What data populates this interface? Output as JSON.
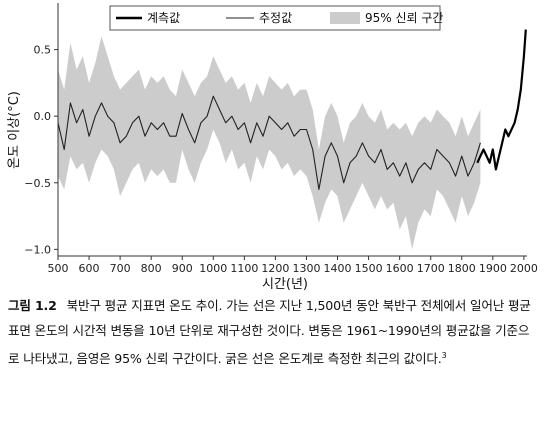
{
  "chart_data": {
    "type": "line",
    "xlabel": "시간(년)",
    "ylabel": "온도 이상(°C)",
    "xlim": [
      500,
      2010
    ],
    "ylim": [
      -1.05,
      0.85
    ],
    "x_ticks": [
      500,
      600,
      700,
      800,
      900,
      1000,
      1100,
      1200,
      1300,
      1400,
      1500,
      1600,
      1700,
      1800,
      1900,
      2000
    ],
    "x_tick_labels": [
      "500",
      "600",
      "700",
      "800",
      "900",
      "1000",
      "1100",
      "1200",
      "1300",
      "1400",
      "1500",
      "1600",
      "1700",
      "1800",
      "1900",
      "2000"
    ],
    "y_ticks": [
      0.5,
      0.0,
      -0.5,
      -1.0
    ],
    "y_tick_labels": [
      "0.5",
      "0.0",
      "−0.5",
      "−1.0"
    ],
    "legend_position": "top",
    "grid": false,
    "series": [
      {
        "name": "추정값",
        "style": "thin-line",
        "color": "#222222",
        "x": [
          500,
          520,
          540,
          560,
          580,
          600,
          620,
          640,
          660,
          680,
          700,
          720,
          740,
          760,
          780,
          800,
          820,
          840,
          860,
          880,
          900,
          920,
          940,
          960,
          980,
          1000,
          1020,
          1040,
          1060,
          1080,
          1100,
          1120,
          1140,
          1160,
          1180,
          1200,
          1220,
          1240,
          1260,
          1280,
          1300,
          1320,
          1340,
          1360,
          1380,
          1400,
          1420,
          1440,
          1460,
          1480,
          1500,
          1520,
          1540,
          1560,
          1580,
          1600,
          1620,
          1640,
          1660,
          1680,
          1700,
          1720,
          1740,
          1760,
          1780,
          1800,
          1820,
          1840,
          1860
        ],
        "values": [
          -0.05,
          -0.25,
          0.1,
          -0.05,
          0.05,
          -0.15,
          0.0,
          0.1,
          0.0,
          -0.05,
          -0.2,
          -0.15,
          -0.05,
          0.0,
          -0.15,
          -0.05,
          -0.1,
          -0.05,
          -0.15,
          -0.15,
          0.02,
          -0.1,
          -0.2,
          -0.05,
          0.0,
          0.15,
          0.05,
          -0.05,
          0.0,
          -0.1,
          -0.05,
          -0.2,
          -0.05,
          -0.15,
          0.0,
          -0.05,
          -0.1,
          -0.05,
          -0.15,
          -0.1,
          -0.1,
          -0.25,
          -0.55,
          -0.3,
          -0.2,
          -0.3,
          -0.5,
          -0.35,
          -0.3,
          -0.2,
          -0.3,
          -0.35,
          -0.25,
          -0.4,
          -0.35,
          -0.45,
          -0.35,
          -0.5,
          -0.4,
          -0.35,
          -0.4,
          -0.25,
          -0.3,
          -0.35,
          -0.45,
          -0.3,
          -0.45,
          -0.35,
          -0.2
        ]
      },
      {
        "name": "계측값",
        "style": "thick-line",
        "color": "#000000",
        "x": [
          1850,
          1860,
          1870,
          1880,
          1890,
          1900,
          1910,
          1920,
          1930,
          1940,
          1950,
          1960,
          1970,
          1980,
          1990,
          2000,
          2006
        ],
        "values": [
          -0.35,
          -0.3,
          -0.25,
          -0.3,
          -0.35,
          -0.25,
          -0.4,
          -0.3,
          -0.2,
          -0.1,
          -0.15,
          -0.1,
          -0.05,
          0.05,
          0.2,
          0.45,
          0.65
        ]
      },
      {
        "name": "95% 신뢰 구간",
        "style": "band",
        "color": "#cccccc",
        "x": [
          500,
          520,
          540,
          560,
          580,
          600,
          620,
          640,
          660,
          680,
          700,
          720,
          740,
          760,
          780,
          800,
          820,
          840,
          860,
          880,
          900,
          920,
          940,
          960,
          980,
          1000,
          1020,
          1040,
          1060,
          1080,
          1100,
          1120,
          1140,
          1160,
          1180,
          1200,
          1220,
          1240,
          1260,
          1280,
          1300,
          1320,
          1340,
          1360,
          1380,
          1400,
          1420,
          1440,
          1460,
          1480,
          1500,
          1520,
          1540,
          1560,
          1580,
          1600,
          1620,
          1640,
          1660,
          1680,
          1700,
          1720,
          1740,
          1760,
          1780,
          1800,
          1820,
          1840,
          1860
        ],
        "lower": [
          -0.45,
          -0.55,
          -0.3,
          -0.4,
          -0.35,
          -0.5,
          -0.35,
          -0.25,
          -0.3,
          -0.4,
          -0.6,
          -0.5,
          -0.4,
          -0.35,
          -0.5,
          -0.4,
          -0.45,
          -0.4,
          -0.5,
          -0.5,
          -0.25,
          -0.4,
          -0.5,
          -0.35,
          -0.25,
          -0.1,
          -0.2,
          -0.35,
          -0.25,
          -0.4,
          -0.35,
          -0.5,
          -0.3,
          -0.4,
          -0.25,
          -0.3,
          -0.4,
          -0.35,
          -0.45,
          -0.4,
          -0.45,
          -0.6,
          -0.8,
          -0.65,
          -0.55,
          -0.6,
          -0.8,
          -0.7,
          -0.6,
          -0.5,
          -0.6,
          -0.7,
          -0.6,
          -0.7,
          -0.65,
          -0.85,
          -0.75,
          -1.0,
          -0.8,
          -0.7,
          -0.75,
          -0.55,
          -0.6,
          -0.7,
          -0.8,
          -0.6,
          -0.75,
          -0.65,
          -0.5
        ],
        "upper": [
          0.35,
          0.2,
          0.55,
          0.35,
          0.45,
          0.25,
          0.4,
          0.6,
          0.45,
          0.3,
          0.2,
          0.25,
          0.3,
          0.35,
          0.2,
          0.3,
          0.25,
          0.3,
          0.2,
          0.15,
          0.35,
          0.25,
          0.15,
          0.25,
          0.3,
          0.45,
          0.35,
          0.25,
          0.3,
          0.2,
          0.25,
          0.1,
          0.25,
          0.15,
          0.3,
          0.25,
          0.2,
          0.25,
          0.15,
          0.2,
          0.2,
          0.05,
          -0.25,
          0.0,
          0.1,
          0.0,
          -0.2,
          -0.05,
          0.0,
          0.1,
          0.0,
          -0.05,
          0.05,
          -0.1,
          -0.05,
          -0.1,
          -0.05,
          -0.15,
          -0.05,
          0.0,
          -0.05,
          0.05,
          0.0,
          -0.05,
          -0.15,
          0.0,
          -0.15,
          -0.05,
          0.05
        ]
      }
    ]
  },
  "legend": {
    "measured_label": "계측값",
    "estimated_label": "추정값",
    "band_label": "95% 신뢰 구간"
  },
  "caption": {
    "figure_number": "그림 1.2",
    "text": "북반구 평균 지표면 온도 추이. 가는 선은 지난 1,500년 동안 북반구 전체에서 일어난 평균 표면 온도의 시간적 변동을 10년 단위로 재구성한 것이다. 변동은 1961~1990년의 평균값을 기준으로 나타냈고, 음영은 95% 신뢰 구간이다. 굵은 선은 온도계로 측정한 최근의 값이다.",
    "footnote": "3"
  }
}
